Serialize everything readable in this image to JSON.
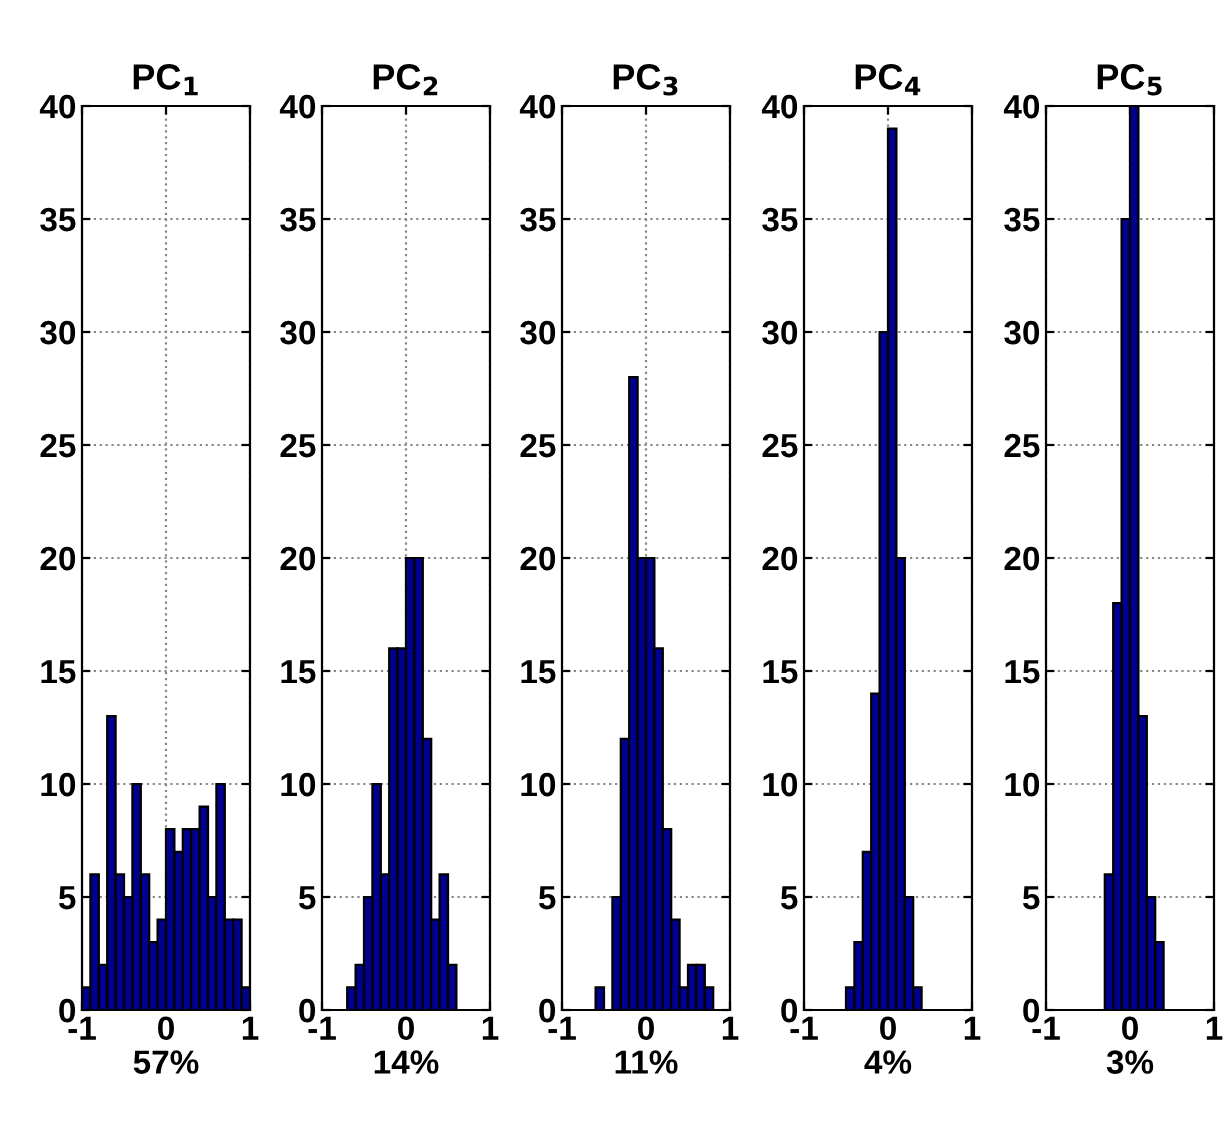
{
  "chart_data": [
    {
      "type": "histogram",
      "title": "PC$_{1}$",
      "xlabel": "57%",
      "color": "#000090",
      "grid": true,
      "xlim": [
        -1,
        1
      ],
      "xticks": [
        -1,
        0,
        1
      ],
      "ylim": [
        0,
        40
      ],
      "yticks": [
        0,
        5,
        10,
        15,
        20,
        25,
        30,
        35,
        40
      ],
      "bins": [
        -1,
        -0.9,
        -0.8,
        -0.7,
        -0.6,
        -0.5,
        -0.4,
        -0.3,
        -0.2,
        -0.1,
        0,
        0.1,
        0.2,
        0.3,
        0.4,
        0.5,
        0.6,
        0.7,
        0.8,
        0.9,
        1
      ],
      "values": [
        1,
        6,
        2,
        13,
        6,
        5,
        10,
        6,
        3,
        4,
        8,
        7,
        8,
        8,
        9,
        5,
        10,
        4,
        4,
        1
      ]
    },
    {
      "type": "histogram",
      "title": "PC$_{2}$",
      "xlabel": "14%",
      "color": "#000090",
      "grid": true,
      "xlim": [
        -1,
        1
      ],
      "xticks": [
        -1,
        0,
        1
      ],
      "ylim": [
        0,
        40
      ],
      "yticks": [
        0,
        5,
        10,
        15,
        20,
        25,
        30,
        35,
        40
      ],
      "bins": [
        -0.7,
        -0.6,
        -0.5,
        -0.4,
        -0.3,
        -0.2,
        -0.1,
        0,
        0.1,
        0.2,
        0.3,
        0.4,
        0.5,
        0.6
      ],
      "values": [
        1,
        2,
        5,
        10,
        6,
        16,
        16,
        20,
        20,
        12,
        4,
        6,
        2
      ]
    },
    {
      "type": "histogram",
      "title": "PC$_{3}$",
      "xlabel": "11%",
      "color": "#000090",
      "grid": true,
      "xlim": [
        -1,
        1
      ],
      "xticks": [
        -1,
        0,
        1
      ],
      "ylim": [
        0,
        40
      ],
      "yticks": [
        0,
        5,
        10,
        15,
        20,
        25,
        30,
        35,
        40
      ],
      "bins": [
        -0.6,
        -0.5,
        -0.4,
        -0.3,
        -0.2,
        -0.1,
        0,
        0.1,
        0.2,
        0.3,
        0.4,
        0.5,
        0.6,
        0.7,
        0.8
      ],
      "values": [
        1,
        0,
        5,
        12,
        28,
        20,
        20,
        16,
        8,
        4,
        1,
        2,
        2,
        1
      ]
    },
    {
      "type": "histogram",
      "title": "PC$_{4}$",
      "xlabel": "4%",
      "color": "#000090",
      "grid": true,
      "xlim": [
        -1,
        1
      ],
      "xticks": [
        -1,
        0,
        1
      ],
      "ylim": [
        0,
        40
      ],
      "yticks": [
        0,
        5,
        10,
        15,
        20,
        25,
        30,
        35,
        40
      ],
      "bins": [
        -0.5,
        -0.4,
        -0.3,
        -0.2,
        -0.1,
        0,
        0.1,
        0.2,
        0.3,
        0.4
      ],
      "values": [
        1,
        3,
        7,
        14,
        30,
        39,
        20,
        5,
        1
      ]
    },
    {
      "type": "histogram",
      "title": "PC$_{5}$",
      "xlabel": "3%",
      "color": "#000090",
      "grid": true,
      "xlim": [
        -1,
        1
      ],
      "xticks": [
        -1,
        0,
        1
      ],
      "ylim": [
        0,
        40
      ],
      "yticks": [
        0,
        5,
        10,
        15,
        20,
        25,
        30,
        35,
        40
      ],
      "bins": [
        -0.3,
        -0.2,
        -0.1,
        0,
        0.1,
        0.2,
        0.3,
        0.4
      ],
      "values": [
        6,
        18,
        35,
        40,
        13,
        5,
        3
      ]
    }
  ]
}
